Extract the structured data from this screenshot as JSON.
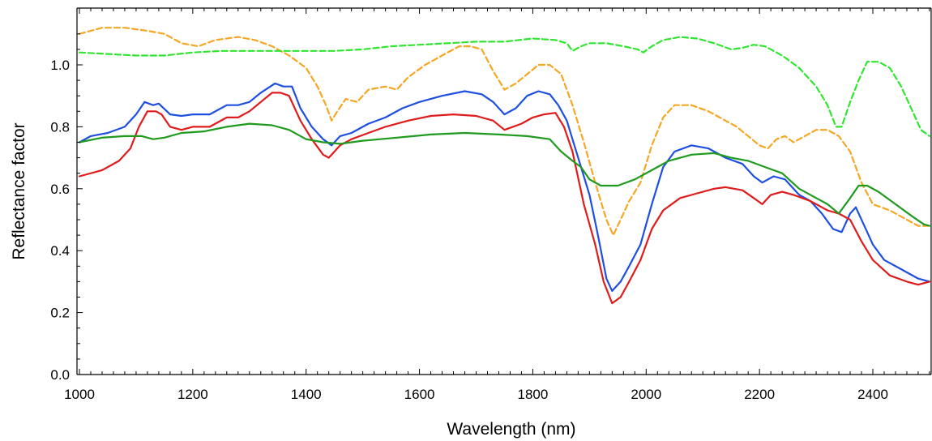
{
  "chart_data": {
    "type": "line",
    "title": "",
    "xlabel": "Wavelength (nm)",
    "ylabel": "Reflectance factor",
    "xlim": [
      1000,
      2500
    ],
    "ylim": [
      0,
      1.15
    ],
    "xticks": [
      1000,
      1200,
      1400,
      1600,
      1800,
      2000,
      2200,
      2400
    ],
    "xtick_labels": [
      "1000",
      "1200",
      "1400",
      "1600",
      "1800",
      "2000",
      "2200",
      "2400"
    ],
    "yticks": [
      0,
      0.2,
      0.4,
      0.6,
      0.8,
      1.0
    ],
    "ytick_labels": [
      "0.0",
      "0.2",
      "0.4",
      "0.6",
      "0.8",
      "1.0"
    ],
    "grid": false,
    "legend": "none",
    "series": [
      {
        "color": "#f5a623",
        "dash": "dashed",
        "points": [
          [
            1000,
            1.1
          ],
          [
            1040,
            1.12
          ],
          [
            1080,
            1.12
          ],
          [
            1120,
            1.11
          ],
          [
            1150,
            1.1
          ],
          [
            1180,
            1.07
          ],
          [
            1210,
            1.06
          ],
          [
            1240,
            1.08
          ],
          [
            1280,
            1.09
          ],
          [
            1310,
            1.08
          ],
          [
            1340,
            1.06
          ],
          [
            1370,
            1.03
          ],
          [
            1400,
            0.99
          ],
          [
            1420,
            0.93
          ],
          [
            1435,
            0.87
          ],
          [
            1445,
            0.82
          ],
          [
            1455,
            0.85
          ],
          [
            1470,
            0.89
          ],
          [
            1490,
            0.88
          ],
          [
            1510,
            0.92
          ],
          [
            1540,
            0.93
          ],
          [
            1560,
            0.92
          ],
          [
            1580,
            0.96
          ],
          [
            1610,
            1.0
          ],
          [
            1640,
            1.03
          ],
          [
            1670,
            1.06
          ],
          [
            1690,
            1.06
          ],
          [
            1710,
            1.05
          ],
          [
            1730,
            0.98
          ],
          [
            1750,
            0.92
          ],
          [
            1770,
            0.94
          ],
          [
            1790,
            0.97
          ],
          [
            1810,
            1.0
          ],
          [
            1830,
            1.0
          ],
          [
            1850,
            0.97
          ],
          [
            1870,
            0.87
          ],
          [
            1890,
            0.75
          ],
          [
            1910,
            0.62
          ],
          [
            1930,
            0.5
          ],
          [
            1942,
            0.45
          ],
          [
            1955,
            0.5
          ],
          [
            1970,
            0.56
          ],
          [
            1990,
            0.62
          ],
          [
            2010,
            0.74
          ],
          [
            2030,
            0.83
          ],
          [
            2050,
            0.87
          ],
          [
            2080,
            0.87
          ],
          [
            2110,
            0.85
          ],
          [
            2140,
            0.82
          ],
          [
            2160,
            0.8
          ],
          [
            2180,
            0.77
          ],
          [
            2200,
            0.74
          ],
          [
            2215,
            0.73
          ],
          [
            2230,
            0.76
          ],
          [
            2245,
            0.77
          ],
          [
            2260,
            0.75
          ],
          [
            2280,
            0.77
          ],
          [
            2300,
            0.79
          ],
          [
            2320,
            0.79
          ],
          [
            2340,
            0.77
          ],
          [
            2360,
            0.72
          ],
          [
            2380,
            0.62
          ],
          [
            2400,
            0.55
          ],
          [
            2430,
            0.53
          ],
          [
            2460,
            0.5
          ],
          [
            2480,
            0.48
          ],
          [
            2500,
            0.48
          ]
        ]
      },
      {
        "color": "#2ee62e",
        "dash": "dashed",
        "points": [
          [
            1000,
            1.04
          ],
          [
            1050,
            1.035
          ],
          [
            1100,
            1.03
          ],
          [
            1150,
            1.03
          ],
          [
            1200,
            1.04
          ],
          [
            1250,
            1.045
          ],
          [
            1300,
            1.045
          ],
          [
            1350,
            1.045
          ],
          [
            1400,
            1.045
          ],
          [
            1450,
            1.045
          ],
          [
            1500,
            1.05
          ],
          [
            1550,
            1.06
          ],
          [
            1600,
            1.065
          ],
          [
            1650,
            1.07
          ],
          [
            1700,
            1.075
          ],
          [
            1750,
            1.075
          ],
          [
            1800,
            1.085
          ],
          [
            1840,
            1.08
          ],
          [
            1860,
            1.07
          ],
          [
            1870,
            1.045
          ],
          [
            1885,
            1.06
          ],
          [
            1900,
            1.07
          ],
          [
            1930,
            1.07
          ],
          [
            1960,
            1.06
          ],
          [
            1985,
            1.05
          ],
          [
            1995,
            1.04
          ],
          [
            2010,
            1.06
          ],
          [
            2030,
            1.08
          ],
          [
            2060,
            1.09
          ],
          [
            2090,
            1.085
          ],
          [
            2120,
            1.07
          ],
          [
            2150,
            1.05
          ],
          [
            2170,
            1.055
          ],
          [
            2190,
            1.065
          ],
          [
            2210,
            1.06
          ],
          [
            2240,
            1.03
          ],
          [
            2270,
            0.99
          ],
          [
            2300,
            0.93
          ],
          [
            2320,
            0.87
          ],
          [
            2335,
            0.8
          ],
          [
            2345,
            0.8
          ],
          [
            2360,
            0.88
          ],
          [
            2375,
            0.95
          ],
          [
            2390,
            1.01
          ],
          [
            2410,
            1.01
          ],
          [
            2430,
            0.99
          ],
          [
            2450,
            0.93
          ],
          [
            2470,
            0.85
          ],
          [
            2485,
            0.79
          ],
          [
            2500,
            0.77
          ]
        ]
      },
      {
        "color": "#1f4fe0",
        "dash": "solid",
        "points": [
          [
            1000,
            0.75
          ],
          [
            1020,
            0.77
          ],
          [
            1050,
            0.78
          ],
          [
            1080,
            0.8
          ],
          [
            1100,
            0.84
          ],
          [
            1115,
            0.88
          ],
          [
            1130,
            0.87
          ],
          [
            1140,
            0.875
          ],
          [
            1160,
            0.84
          ],
          [
            1180,
            0.835
          ],
          [
            1200,
            0.84
          ],
          [
            1230,
            0.84
          ],
          [
            1260,
            0.87
          ],
          [
            1280,
            0.87
          ],
          [
            1300,
            0.88
          ],
          [
            1320,
            0.91
          ],
          [
            1345,
            0.94
          ],
          [
            1360,
            0.93
          ],
          [
            1375,
            0.93
          ],
          [
            1390,
            0.86
          ],
          [
            1410,
            0.8
          ],
          [
            1430,
            0.76
          ],
          [
            1445,
            0.74
          ],
          [
            1460,
            0.77
          ],
          [
            1480,
            0.78
          ],
          [
            1510,
            0.81
          ],
          [
            1540,
            0.83
          ],
          [
            1570,
            0.86
          ],
          [
            1600,
            0.88
          ],
          [
            1640,
            0.9
          ],
          [
            1680,
            0.915
          ],
          [
            1710,
            0.905
          ],
          [
            1730,
            0.88
          ],
          [
            1750,
            0.84
          ],
          [
            1770,
            0.86
          ],
          [
            1790,
            0.9
          ],
          [
            1810,
            0.915
          ],
          [
            1830,
            0.905
          ],
          [
            1845,
            0.87
          ],
          [
            1860,
            0.82
          ],
          [
            1880,
            0.7
          ],
          [
            1900,
            0.58
          ],
          [
            1915,
            0.45
          ],
          [
            1930,
            0.31
          ],
          [
            1940,
            0.27
          ],
          [
            1955,
            0.3
          ],
          [
            1970,
            0.35
          ],
          [
            1990,
            0.42
          ],
          [
            2010,
            0.55
          ],
          [
            2030,
            0.67
          ],
          [
            2050,
            0.72
          ],
          [
            2080,
            0.74
          ],
          [
            2110,
            0.73
          ],
          [
            2140,
            0.7
          ],
          [
            2170,
            0.68
          ],
          [
            2190,
            0.64
          ],
          [
            2205,
            0.62
          ],
          [
            2225,
            0.64
          ],
          [
            2245,
            0.63
          ],
          [
            2270,
            0.58
          ],
          [
            2290,
            0.56
          ],
          [
            2310,
            0.52
          ],
          [
            2330,
            0.47
          ],
          [
            2345,
            0.46
          ],
          [
            2360,
            0.52
          ],
          [
            2370,
            0.54
          ],
          [
            2385,
            0.48
          ],
          [
            2400,
            0.42
          ],
          [
            2420,
            0.37
          ],
          [
            2450,
            0.34
          ],
          [
            2480,
            0.31
          ],
          [
            2500,
            0.3
          ]
        ]
      },
      {
        "color": "#e01b1b",
        "dash": "solid",
        "points": [
          [
            1000,
            0.64
          ],
          [
            1040,
            0.66
          ],
          [
            1070,
            0.69
          ],
          [
            1090,
            0.73
          ],
          [
            1105,
            0.8
          ],
          [
            1120,
            0.85
          ],
          [
            1135,
            0.85
          ],
          [
            1145,
            0.84
          ],
          [
            1160,
            0.8
          ],
          [
            1180,
            0.79
          ],
          [
            1200,
            0.8
          ],
          [
            1230,
            0.8
          ],
          [
            1260,
            0.83
          ],
          [
            1280,
            0.83
          ],
          [
            1300,
            0.85
          ],
          [
            1320,
            0.88
          ],
          [
            1340,
            0.91
          ],
          [
            1355,
            0.91
          ],
          [
            1370,
            0.9
          ],
          [
            1390,
            0.82
          ],
          [
            1410,
            0.76
          ],
          [
            1430,
            0.71
          ],
          [
            1440,
            0.7
          ],
          [
            1460,
            0.74
          ],
          [
            1480,
            0.76
          ],
          [
            1510,
            0.78
          ],
          [
            1540,
            0.8
          ],
          [
            1580,
            0.82
          ],
          [
            1620,
            0.835
          ],
          [
            1660,
            0.84
          ],
          [
            1700,
            0.835
          ],
          [
            1730,
            0.82
          ],
          [
            1750,
            0.79
          ],
          [
            1780,
            0.81
          ],
          [
            1800,
            0.83
          ],
          [
            1820,
            0.84
          ],
          [
            1840,
            0.845
          ],
          [
            1855,
            0.8
          ],
          [
            1870,
            0.72
          ],
          [
            1890,
            0.55
          ],
          [
            1910,
            0.42
          ],
          [
            1925,
            0.3
          ],
          [
            1940,
            0.23
          ],
          [
            1955,
            0.25
          ],
          [
            1970,
            0.3
          ],
          [
            1990,
            0.37
          ],
          [
            2010,
            0.47
          ],
          [
            2030,
            0.53
          ],
          [
            2060,
            0.57
          ],
          [
            2090,
            0.585
          ],
          [
            2120,
            0.6
          ],
          [
            2140,
            0.605
          ],
          [
            2170,
            0.595
          ],
          [
            2190,
            0.57
          ],
          [
            2205,
            0.55
          ],
          [
            2220,
            0.58
          ],
          [
            2240,
            0.59
          ],
          [
            2260,
            0.58
          ],
          [
            2290,
            0.56
          ],
          [
            2320,
            0.53
          ],
          [
            2340,
            0.52
          ],
          [
            2360,
            0.5
          ],
          [
            2380,
            0.43
          ],
          [
            2400,
            0.37
          ],
          [
            2430,
            0.32
          ],
          [
            2460,
            0.3
          ],
          [
            2480,
            0.29
          ],
          [
            2500,
            0.3
          ]
        ]
      },
      {
        "color": "#1f9a1f",
        "dash": "solid",
        "points": [
          [
            1000,
            0.75
          ],
          [
            1040,
            0.765
          ],
          [
            1080,
            0.77
          ],
          [
            1110,
            0.77
          ],
          [
            1130,
            0.76
          ],
          [
            1150,
            0.765
          ],
          [
            1180,
            0.78
          ],
          [
            1220,
            0.785
          ],
          [
            1260,
            0.8
          ],
          [
            1300,
            0.81
          ],
          [
            1340,
            0.805
          ],
          [
            1370,
            0.79
          ],
          [
            1400,
            0.76
          ],
          [
            1430,
            0.75
          ],
          [
            1460,
            0.745
          ],
          [
            1500,
            0.755
          ],
          [
            1560,
            0.765
          ],
          [
            1620,
            0.775
          ],
          [
            1680,
            0.78
          ],
          [
            1740,
            0.775
          ],
          [
            1790,
            0.77
          ],
          [
            1830,
            0.76
          ],
          [
            1850,
            0.72
          ],
          [
            1870,
            0.69
          ],
          [
            1885,
            0.67
          ],
          [
            1900,
            0.63
          ],
          [
            1920,
            0.61
          ],
          [
            1950,
            0.61
          ],
          [
            1980,
            0.63
          ],
          [
            2010,
            0.66
          ],
          [
            2040,
            0.69
          ],
          [
            2080,
            0.71
          ],
          [
            2120,
            0.715
          ],
          [
            2150,
            0.7
          ],
          [
            2180,
            0.69
          ],
          [
            2210,
            0.67
          ],
          [
            2240,
            0.65
          ],
          [
            2270,
            0.6
          ],
          [
            2300,
            0.57
          ],
          [
            2320,
            0.55
          ],
          [
            2340,
            0.52
          ],
          [
            2360,
            0.57
          ],
          [
            2375,
            0.61
          ],
          [
            2390,
            0.61
          ],
          [
            2410,
            0.59
          ],
          [
            2440,
            0.55
          ],
          [
            2470,
            0.51
          ],
          [
            2490,
            0.485
          ],
          [
            2500,
            0.48
          ]
        ]
      }
    ]
  }
}
